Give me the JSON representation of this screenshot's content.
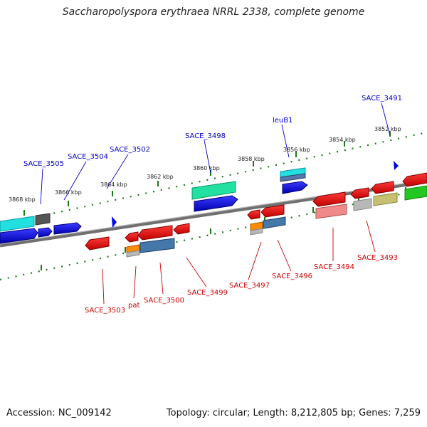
{
  "title": "Saccharopolyspora erythraea NRRL 2338, complete genome",
  "footer": {
    "accession": "Accession: NC_009142",
    "topology": "Topology: circular; Length: 8,212,805 bp; Genes: 7,259"
  },
  "colors": {
    "forward_label": "#0000cc",
    "reverse_label": "#cc0000",
    "ticks": "#1a7a1a",
    "backbone": "#777777"
  },
  "kbp_labels": [
    "3868 kbp",
    "3866 kbp",
    "3864 kbp",
    "3862 kbp",
    "3860 kbp",
    "3858 kbp",
    "3856 kbp",
    "3854 kbp",
    "3852 kbp"
  ],
  "forward_genes": [
    "SACE_3505",
    "SACE_3504",
    "SACE_3502",
    "SACE_3498",
    "leuB1",
    "SACE_3491"
  ],
  "reverse_genes": [
    "SACE_3503",
    "pat",
    "SACE_3500",
    "SACE_3499",
    "SACE_3497",
    "SACE_3496",
    "SACE_3494",
    "SACE_3493"
  ]
}
